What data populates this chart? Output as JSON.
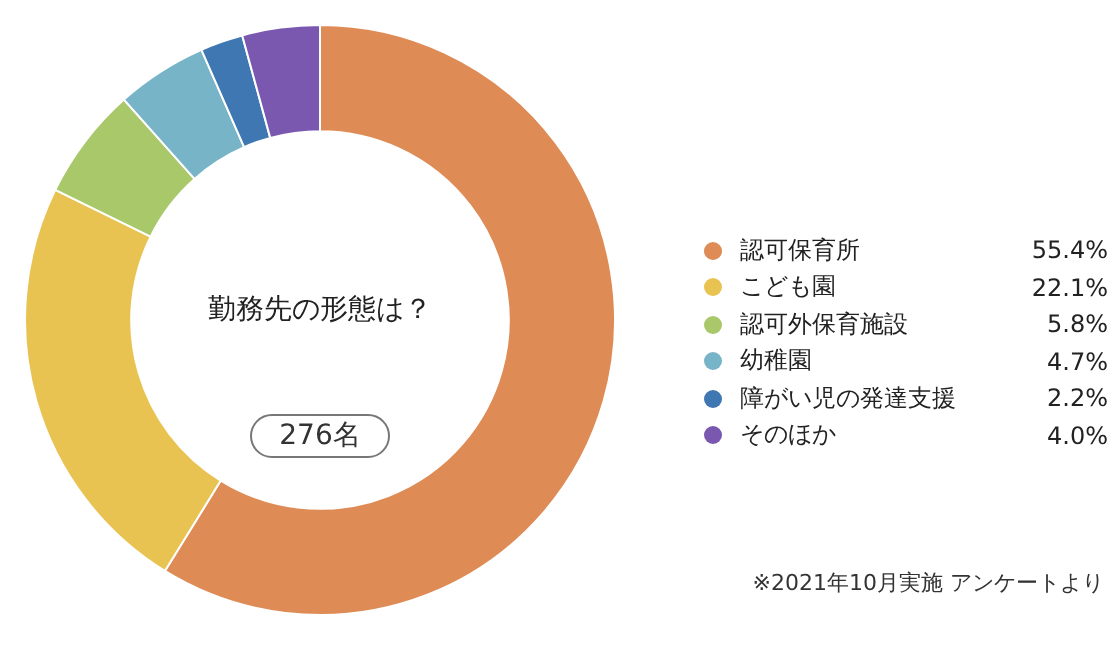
{
  "chart_data": {
    "type": "donut",
    "title": "勤務先の形態は？",
    "categories": [
      "認可保育所",
      "こども園",
      "認可外保育施設",
      "幼稚園",
      "障がい児の発達支援",
      "そのほか"
    ],
    "values": [
      55.4,
      22.1,
      5.8,
      4.7,
      2.2,
      4.0
    ],
    "value_labels": [
      "55.4%",
      "22.1%",
      "5.8%",
      "4.7%",
      "2.2%",
      "4.0%"
    ],
    "colors": [
      "#de8b56",
      "#e9c352",
      "#a8c86a",
      "#78b4c8",
      "#3f77b2",
      "#7a58b0"
    ],
    "legend": "right",
    "annotations": [
      "276名",
      "※2021年10月実施 アンケートより"
    ]
  }
}
